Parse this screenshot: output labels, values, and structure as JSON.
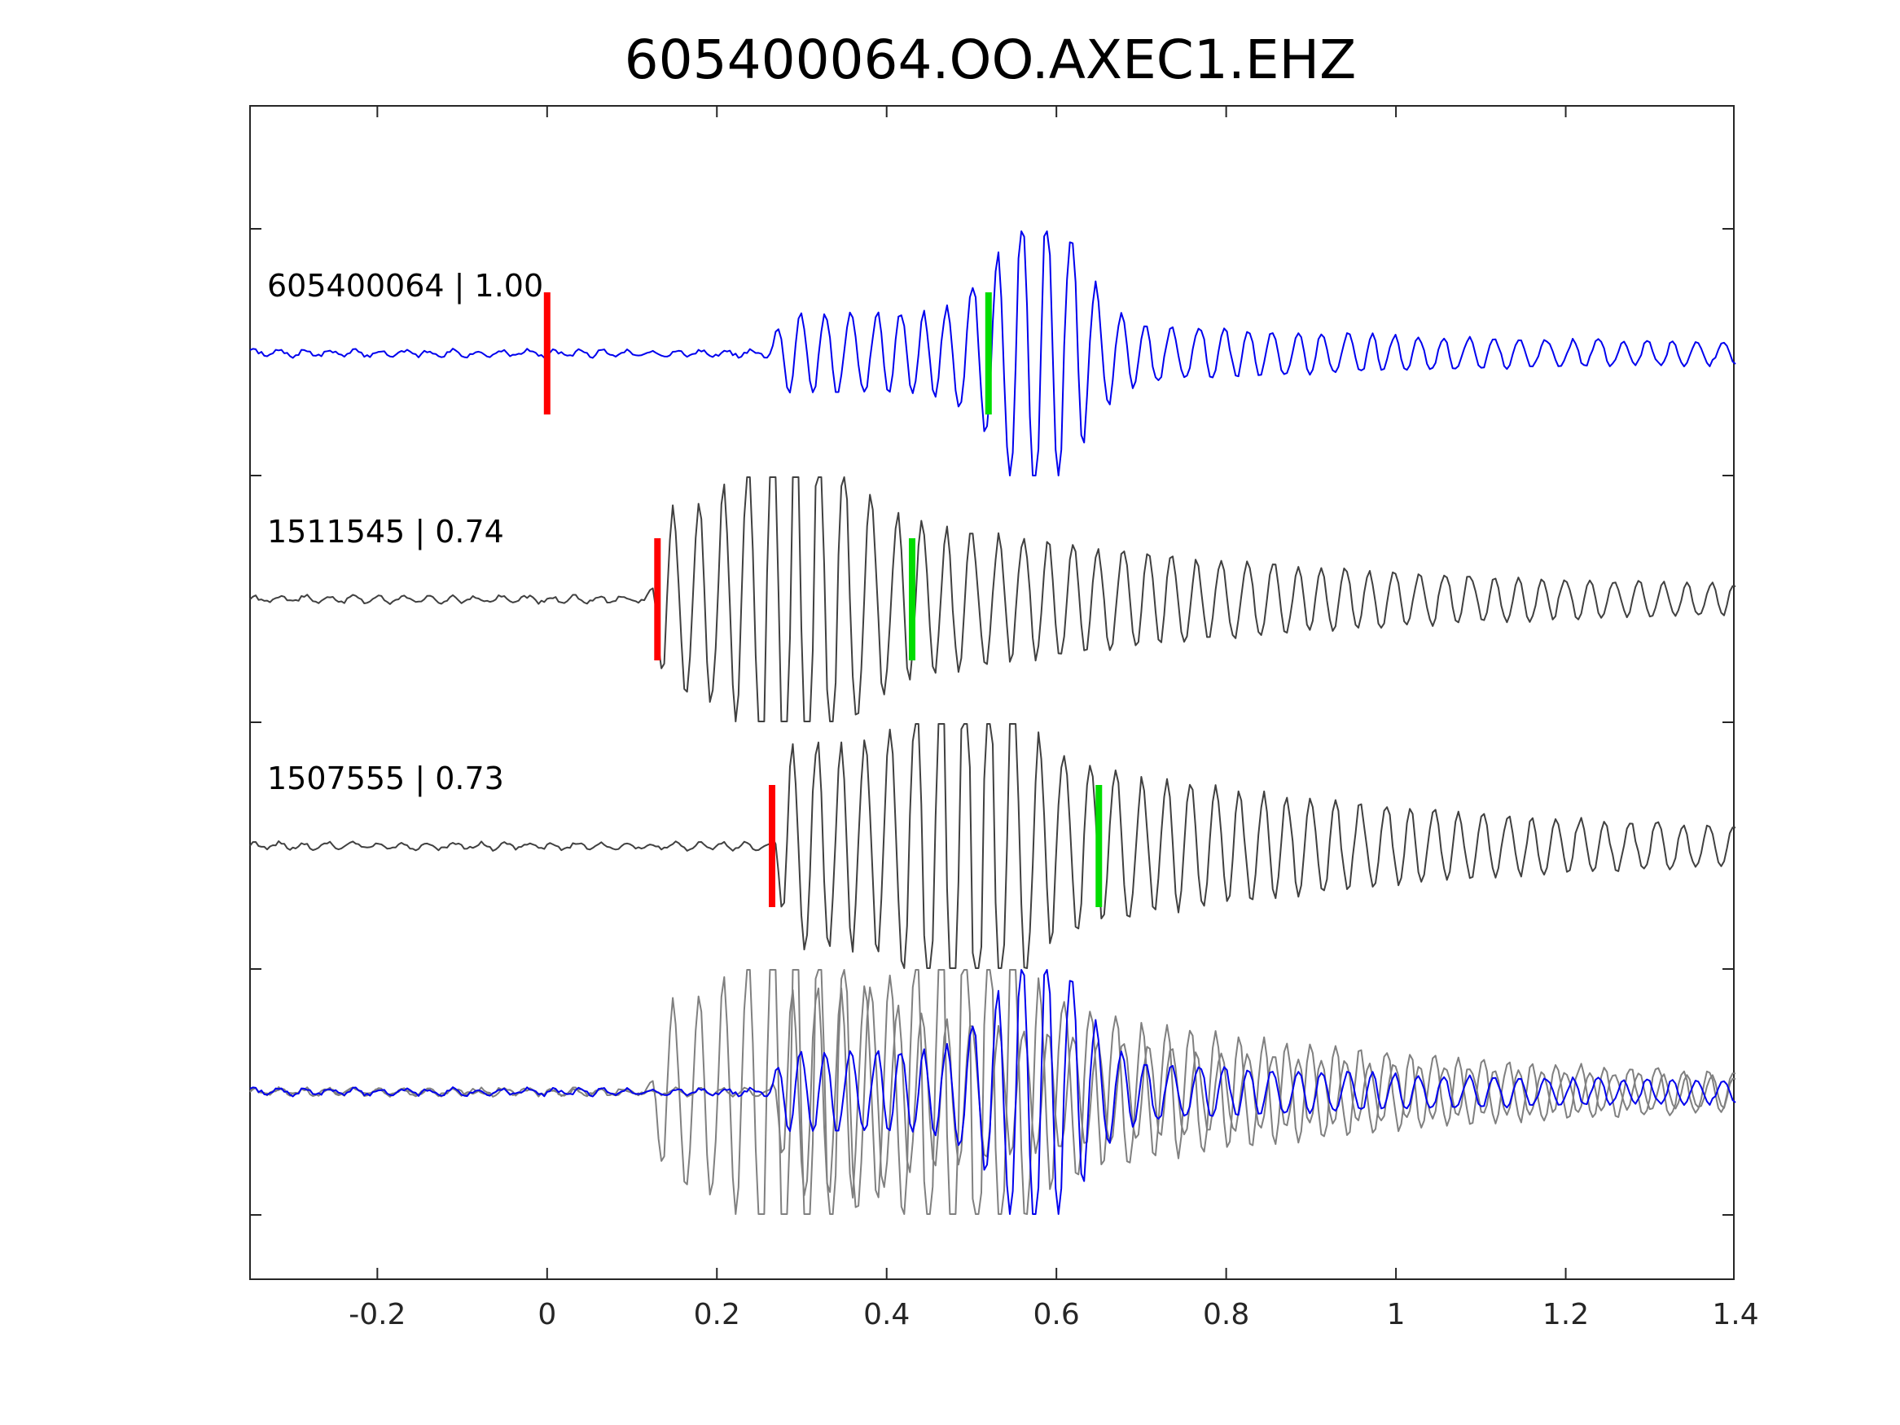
{
  "chart_data": {
    "type": "line",
    "title": "605400064.OO.AXEC1.EHZ",
    "xlabel": "",
    "ylabel": "",
    "xlim": [
      -0.35,
      1.4
    ],
    "x_ticks": [
      -0.2,
      0,
      0.2,
      0.4,
      0.6,
      0.8,
      1,
      1.2,
      1.4
    ],
    "x_tick_labels": [
      "-0.2",
      "0",
      "0.2",
      "0.4",
      "0.6",
      "0.8",
      "1",
      "1.2",
      "1.4"
    ],
    "y_tick_labels_visible": false,
    "grid": false,
    "colors": {
      "master": "#0000ee",
      "neighbor": "#404040",
      "overlay_neighbor": "#808080",
      "p_pick": "#ff0000",
      "s_pick": "#00dd00",
      "axes": "#262626"
    },
    "traces": [
      {
        "label": "605400064 | 1.00",
        "id": "605400064",
        "correlation": 1.0,
        "color": "master",
        "p_pick": 0.0,
        "s_pick": 0.52,
        "onset": 0.26,
        "signal_amp": 0.28,
        "burst_t": 0.58,
        "burst_amp": 0.95,
        "seed": 7
      },
      {
        "label": "1511545 | 0.74",
        "id": "1511545",
        "correlation": 0.74,
        "color": "neighbor",
        "p_pick": 0.13,
        "s_pick": 0.43,
        "onset": 0.12,
        "signal_amp": 0.7,
        "burst_t": 0.29,
        "burst_amp": 0.98,
        "seed": 19
      },
      {
        "label": "1507555 | 0.73",
        "id": "1507555",
        "correlation": 0.73,
        "color": "neighbor",
        "p_pick": 0.265,
        "s_pick": 0.65,
        "onset": 0.265,
        "signal_amp": 0.8,
        "burst_t": 0.5,
        "burst_amp": 0.98,
        "seed": 31
      }
    ],
    "overlay": {
      "label": "",
      "traces": [
        "605400064",
        "1511545",
        "1507555"
      ]
    }
  }
}
